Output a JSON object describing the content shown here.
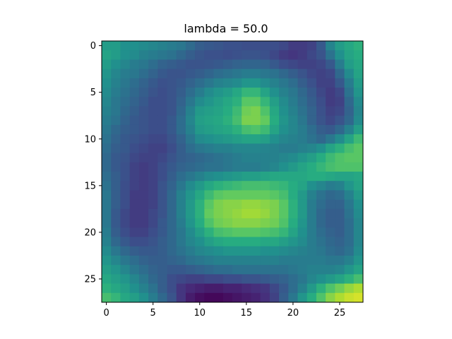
{
  "chart_data": {
    "type": "heatmap",
    "title": "lambda = 50.0",
    "xlabel": "",
    "ylabel": "",
    "colormap": "viridis",
    "grid": false,
    "xlim": [
      -0.5,
      27.5
    ],
    "ylim": [
      27.5,
      -0.5
    ],
    "x_ticks": [
      "0",
      "5",
      "10",
      "15",
      "20",
      "25"
    ],
    "y_ticks": [
      "0",
      "5",
      "10",
      "15",
      "20",
      "25"
    ],
    "value_range": [
      0.0,
      1.0
    ],
    "rows": [
      [
        0.55,
        0.55,
        0.5,
        0.5,
        0.48,
        0.46,
        0.44,
        0.42,
        0.4,
        0.35,
        0.3,
        0.28,
        0.27,
        0.25,
        0.25,
        0.24,
        0.24,
        0.24,
        0.24,
        0.22,
        0.18,
        0.18,
        0.2,
        0.28,
        0.45,
        0.55,
        0.6,
        0.64
      ],
      [
        0.58,
        0.55,
        0.5,
        0.48,
        0.44,
        0.42,
        0.4,
        0.38,
        0.34,
        0.3,
        0.27,
        0.25,
        0.25,
        0.24,
        0.25,
        0.26,
        0.26,
        0.25,
        0.22,
        0.18,
        0.16,
        0.18,
        0.22,
        0.26,
        0.38,
        0.5,
        0.58,
        0.62
      ],
      [
        0.55,
        0.5,
        0.46,
        0.42,
        0.4,
        0.36,
        0.32,
        0.3,
        0.28,
        0.26,
        0.26,
        0.27,
        0.28,
        0.3,
        0.32,
        0.33,
        0.33,
        0.32,
        0.28,
        0.24,
        0.22,
        0.2,
        0.2,
        0.22,
        0.28,
        0.42,
        0.55,
        0.6
      ],
      [
        0.52,
        0.46,
        0.42,
        0.4,
        0.36,
        0.32,
        0.28,
        0.26,
        0.26,
        0.28,
        0.3,
        0.33,
        0.36,
        0.38,
        0.4,
        0.42,
        0.42,
        0.4,
        0.38,
        0.34,
        0.3,
        0.26,
        0.22,
        0.2,
        0.22,
        0.34,
        0.48,
        0.58
      ],
      [
        0.5,
        0.44,
        0.4,
        0.36,
        0.32,
        0.28,
        0.25,
        0.26,
        0.28,
        0.32,
        0.36,
        0.4,
        0.44,
        0.46,
        0.48,
        0.52,
        0.52,
        0.48,
        0.44,
        0.4,
        0.36,
        0.3,
        0.25,
        0.2,
        0.2,
        0.28,
        0.42,
        0.55
      ],
      [
        0.48,
        0.42,
        0.38,
        0.34,
        0.3,
        0.26,
        0.24,
        0.26,
        0.3,
        0.36,
        0.42,
        0.48,
        0.52,
        0.55,
        0.6,
        0.66,
        0.66,
        0.58,
        0.5,
        0.44,
        0.4,
        0.34,
        0.28,
        0.22,
        0.18,
        0.22,
        0.38,
        0.52
      ],
      [
        0.46,
        0.4,
        0.36,
        0.32,
        0.28,
        0.24,
        0.24,
        0.26,
        0.32,
        0.4,
        0.48,
        0.52,
        0.56,
        0.6,
        0.64,
        0.74,
        0.74,
        0.66,
        0.56,
        0.48,
        0.42,
        0.36,
        0.3,
        0.24,
        0.18,
        0.2,
        0.34,
        0.48
      ],
      [
        0.44,
        0.4,
        0.34,
        0.3,
        0.26,
        0.24,
        0.24,
        0.26,
        0.34,
        0.44,
        0.54,
        0.56,
        0.58,
        0.62,
        0.68,
        0.78,
        0.8,
        0.72,
        0.6,
        0.5,
        0.44,
        0.38,
        0.32,
        0.25,
        0.2,
        0.22,
        0.32,
        0.46
      ],
      [
        0.42,
        0.38,
        0.32,
        0.28,
        0.26,
        0.24,
        0.24,
        0.28,
        0.36,
        0.46,
        0.56,
        0.58,
        0.6,
        0.64,
        0.7,
        0.8,
        0.8,
        0.76,
        0.62,
        0.52,
        0.46,
        0.4,
        0.32,
        0.26,
        0.22,
        0.26,
        0.34,
        0.48
      ],
      [
        0.4,
        0.34,
        0.3,
        0.28,
        0.26,
        0.24,
        0.24,
        0.28,
        0.36,
        0.44,
        0.54,
        0.56,
        0.58,
        0.6,
        0.64,
        0.7,
        0.72,
        0.68,
        0.58,
        0.5,
        0.46,
        0.42,
        0.36,
        0.3,
        0.28,
        0.34,
        0.44,
        0.56
      ],
      [
        0.38,
        0.32,
        0.28,
        0.26,
        0.24,
        0.22,
        0.22,
        0.26,
        0.32,
        0.4,
        0.48,
        0.5,
        0.52,
        0.54,
        0.56,
        0.58,
        0.58,
        0.56,
        0.5,
        0.46,
        0.44,
        0.42,
        0.38,
        0.34,
        0.4,
        0.48,
        0.58,
        0.68
      ],
      [
        0.36,
        0.3,
        0.28,
        0.24,
        0.22,
        0.2,
        0.2,
        0.24,
        0.3,
        0.36,
        0.4,
        0.42,
        0.44,
        0.44,
        0.46,
        0.46,
        0.46,
        0.45,
        0.44,
        0.42,
        0.42,
        0.44,
        0.46,
        0.5,
        0.58,
        0.64,
        0.7,
        0.74
      ],
      [
        0.34,
        0.28,
        0.26,
        0.22,
        0.2,
        0.2,
        0.22,
        0.26,
        0.3,
        0.32,
        0.34,
        0.36,
        0.38,
        0.4,
        0.42,
        0.44,
        0.44,
        0.44,
        0.44,
        0.46,
        0.48,
        0.52,
        0.56,
        0.62,
        0.68,
        0.72,
        0.74,
        0.74
      ],
      [
        0.34,
        0.28,
        0.25,
        0.2,
        0.18,
        0.2,
        0.24,
        0.28,
        0.32,
        0.34,
        0.36,
        0.38,
        0.38,
        0.4,
        0.42,
        0.42,
        0.42,
        0.44,
        0.46,
        0.5,
        0.54,
        0.58,
        0.62,
        0.66,
        0.7,
        0.72,
        0.72,
        0.72
      ],
      [
        0.36,
        0.3,
        0.25,
        0.2,
        0.18,
        0.2,
        0.24,
        0.3,
        0.36,
        0.4,
        0.44,
        0.48,
        0.5,
        0.52,
        0.54,
        0.56,
        0.56,
        0.58,
        0.6,
        0.6,
        0.6,
        0.6,
        0.62,
        0.62,
        0.6,
        0.58,
        0.58,
        0.6
      ],
      [
        0.38,
        0.3,
        0.24,
        0.2,
        0.18,
        0.2,
        0.26,
        0.32,
        0.4,
        0.48,
        0.54,
        0.6,
        0.64,
        0.66,
        0.68,
        0.7,
        0.7,
        0.7,
        0.68,
        0.66,
        0.62,
        0.58,
        0.5,
        0.46,
        0.42,
        0.44,
        0.52,
        0.58
      ],
      [
        0.4,
        0.3,
        0.24,
        0.18,
        0.18,
        0.2,
        0.26,
        0.34,
        0.44,
        0.52,
        0.6,
        0.68,
        0.74,
        0.76,
        0.76,
        0.76,
        0.76,
        0.76,
        0.74,
        0.7,
        0.62,
        0.54,
        0.44,
        0.38,
        0.34,
        0.36,
        0.44,
        0.54
      ],
      [
        0.4,
        0.3,
        0.24,
        0.18,
        0.18,
        0.2,
        0.26,
        0.34,
        0.44,
        0.54,
        0.64,
        0.74,
        0.8,
        0.82,
        0.82,
        0.84,
        0.84,
        0.82,
        0.8,
        0.74,
        0.64,
        0.54,
        0.42,
        0.36,
        0.32,
        0.32,
        0.4,
        0.5
      ],
      [
        0.4,
        0.28,
        0.22,
        0.18,
        0.18,
        0.22,
        0.26,
        0.34,
        0.44,
        0.54,
        0.64,
        0.76,
        0.8,
        0.82,
        0.84,
        0.86,
        0.86,
        0.84,
        0.8,
        0.74,
        0.64,
        0.54,
        0.42,
        0.34,
        0.3,
        0.3,
        0.38,
        0.48
      ],
      [
        0.4,
        0.28,
        0.22,
        0.18,
        0.18,
        0.22,
        0.28,
        0.34,
        0.42,
        0.52,
        0.62,
        0.72,
        0.78,
        0.8,
        0.82,
        0.82,
        0.82,
        0.8,
        0.78,
        0.72,
        0.62,
        0.52,
        0.42,
        0.34,
        0.3,
        0.3,
        0.36,
        0.46
      ],
      [
        0.42,
        0.3,
        0.24,
        0.2,
        0.2,
        0.24,
        0.28,
        0.34,
        0.4,
        0.48,
        0.56,
        0.64,
        0.7,
        0.72,
        0.74,
        0.74,
        0.74,
        0.72,
        0.7,
        0.66,
        0.58,
        0.5,
        0.42,
        0.36,
        0.32,
        0.3,
        0.36,
        0.46
      ],
      [
        0.44,
        0.34,
        0.28,
        0.24,
        0.24,
        0.26,
        0.3,
        0.34,
        0.4,
        0.46,
        0.5,
        0.56,
        0.6,
        0.62,
        0.62,
        0.62,
        0.62,
        0.6,
        0.6,
        0.56,
        0.52,
        0.48,
        0.42,
        0.38,
        0.34,
        0.32,
        0.36,
        0.46
      ],
      [
        0.48,
        0.4,
        0.34,
        0.3,
        0.28,
        0.28,
        0.3,
        0.34,
        0.38,
        0.42,
        0.46,
        0.48,
        0.5,
        0.52,
        0.52,
        0.52,
        0.52,
        0.5,
        0.5,
        0.48,
        0.46,
        0.44,
        0.42,
        0.4,
        0.36,
        0.34,
        0.38,
        0.48
      ],
      [
        0.52,
        0.46,
        0.4,
        0.36,
        0.32,
        0.3,
        0.3,
        0.32,
        0.34,
        0.38,
        0.4,
        0.42,
        0.44,
        0.44,
        0.44,
        0.44,
        0.44,
        0.44,
        0.44,
        0.42,
        0.42,
        0.42,
        0.42,
        0.42,
        0.4,
        0.4,
        0.44,
        0.52
      ],
      [
        0.56,
        0.52,
        0.46,
        0.4,
        0.36,
        0.32,
        0.3,
        0.28,
        0.28,
        0.3,
        0.32,
        0.34,
        0.36,
        0.36,
        0.38,
        0.38,
        0.38,
        0.38,
        0.38,
        0.38,
        0.4,
        0.42,
        0.44,
        0.44,
        0.44,
        0.46,
        0.52,
        0.58
      ],
      [
        0.6,
        0.56,
        0.52,
        0.46,
        0.4,
        0.34,
        0.3,
        0.24,
        0.22,
        0.2,
        0.2,
        0.22,
        0.22,
        0.24,
        0.24,
        0.26,
        0.26,
        0.28,
        0.3,
        0.32,
        0.36,
        0.4,
        0.46,
        0.5,
        0.54,
        0.58,
        0.64,
        0.7
      ],
      [
        0.64,
        0.6,
        0.56,
        0.5,
        0.44,
        0.38,
        0.3,
        0.24,
        0.16,
        0.12,
        0.1,
        0.08,
        0.08,
        0.1,
        0.1,
        0.12,
        0.14,
        0.16,
        0.22,
        0.28,
        0.36,
        0.44,
        0.54,
        0.64,
        0.72,
        0.78,
        0.84,
        0.88
      ],
      [
        0.7,
        0.66,
        0.6,
        0.56,
        0.5,
        0.42,
        0.34,
        0.26,
        0.16,
        0.08,
        0.04,
        0.02,
        0.02,
        0.04,
        0.06,
        0.08,
        0.1,
        0.14,
        0.2,
        0.3,
        0.4,
        0.52,
        0.62,
        0.72,
        0.82,
        0.88,
        0.92,
        0.94
      ]
    ]
  }
}
